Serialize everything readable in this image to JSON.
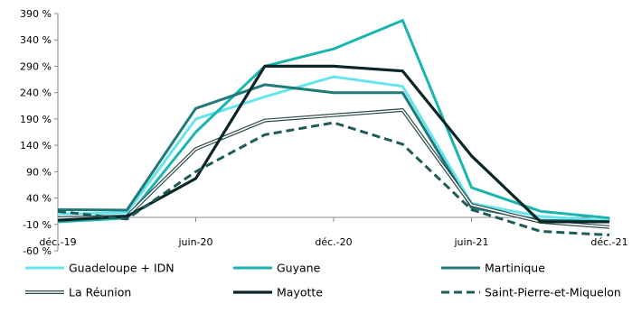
{
  "chart_data": {
    "type": "line",
    "title": "",
    "xlabel": "",
    "ylabel": "",
    "y_unit": "%",
    "ylim": [
      -60,
      390
    ],
    "y_ticks": [
      -60,
      -10,
      40,
      90,
      140,
      190,
      240,
      290,
      340,
      390
    ],
    "y_tick_labels": [
      "-60 %",
      "-10 %",
      "40 %",
      "90 %",
      "140 %",
      "190 %",
      "240 %",
      "290 %",
      "340 %",
      "390 %"
    ],
    "x": [
      0,
      1,
      2,
      3,
      4,
      5,
      6,
      7,
      8,
      9,
      10,
      11,
      12,
      13,
      14,
      15,
      16,
      17,
      18,
      19,
      20,
      21,
      22,
      23,
      24
    ],
    "x_tick_positions": [
      0,
      6,
      12,
      18,
      24
    ],
    "x_tick_labels": [
      "déc.-19",
      "juin-20",
      "déc.-20",
      "juin-21",
      "déc.-21"
    ],
    "grid": false,
    "legend": "bottom",
    "series": [
      {
        "name": "Guadeloupe + IDN",
        "color": "#66e5ef",
        "style": "solid",
        "x": [
          0,
          3,
          6,
          9,
          12,
          15,
          18,
          21,
          24
        ],
        "values": [
          10,
          12,
          190,
          232,
          270,
          252,
          30,
          5,
          -3
        ]
      },
      {
        "name": "Guyane",
        "color": "#1ab5b0",
        "style": "solid",
        "x": [
          0,
          3,
          6,
          9,
          12,
          15,
          18,
          21,
          24
        ],
        "values": [
          -5,
          2,
          165,
          290,
          323,
          377,
          60,
          15,
          2
        ]
      },
      {
        "name": "Martinique",
        "color": "#1f7a78",
        "style": "solid",
        "x": [
          0,
          3,
          6,
          9,
          12,
          15,
          18,
          21,
          24
        ],
        "values": [
          18,
          17,
          210,
          255,
          240,
          240,
          22,
          -2,
          -5
        ]
      },
      {
        "name": "La Réunion",
        "color": "#2d4a4a",
        "style": "double",
        "x": [
          0,
          3,
          6,
          9,
          12,
          15,
          18,
          21,
          24
        ],
        "values": [
          2,
          5,
          133,
          187,
          197,
          207,
          27,
          -5,
          -15
        ]
      },
      {
        "name": "Mayotte",
        "color": "#0a2626",
        "style": "bold",
        "x": [
          0,
          3,
          6,
          9,
          12,
          15,
          18,
          21,
          24
        ],
        "values": [
          -2,
          5,
          77,
          290,
          290,
          281,
          120,
          -5,
          -5
        ]
      },
      {
        "name": "Saint-Pierre-et-Miquelon",
        "color": "#1f5c58",
        "style": "dashed",
        "x": [
          0,
          3,
          6,
          9,
          12,
          15,
          18,
          21,
          24
        ],
        "values": [
          15,
          0,
          90,
          160,
          183,
          142,
          18,
          -23,
          -30
        ]
      }
    ]
  }
}
